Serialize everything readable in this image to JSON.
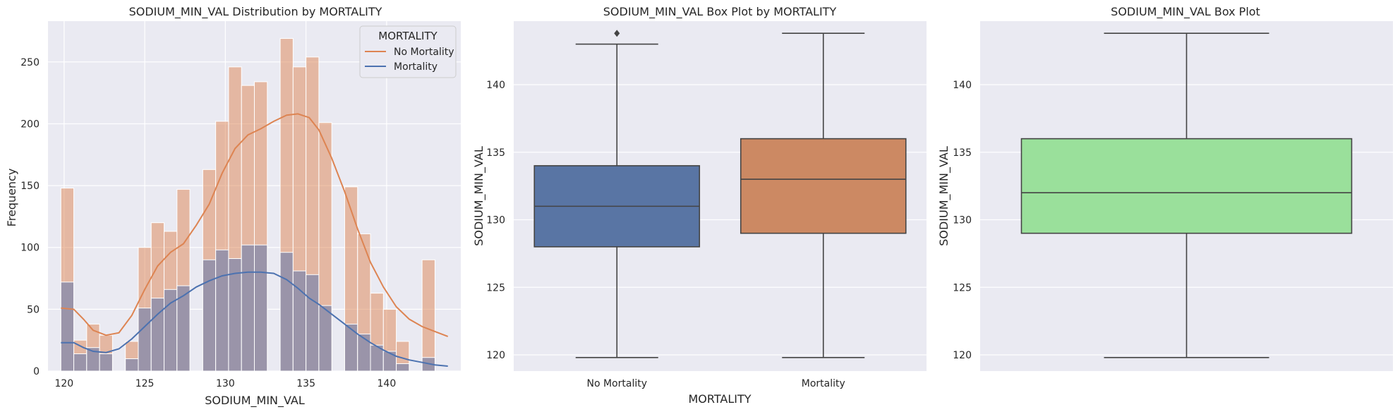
{
  "chart_data": [
    {
      "type": "histogram",
      "title": "SODIUM_MIN_VAL Distribution by MORTALITY",
      "xlabel": "SODIUM_MIN_VAL",
      "ylabel": "Frequency",
      "xlim": [
        119,
        144.6
      ],
      "ylim": [
        0,
        283
      ],
      "xticks": [
        120,
        125,
        130,
        135,
        140
      ],
      "yticks": [
        0,
        50,
        100,
        150,
        200,
        250
      ],
      "legend": {
        "title": "MORTALITY",
        "placement": "top-right",
        "entries": [
          "No Mortality",
          "Mortality"
        ]
      },
      "colors": {
        "No Mortality": "#dd8452",
        "Mortality": "#4c72b0",
        "overlap": "#9a94a9"
      },
      "bin_edges": [
        119.8,
        120.6,
        121.4,
        122.2,
        123.0,
        123.8,
        124.6,
        125.4,
        126.2,
        127.0,
        127.8,
        128.6,
        129.4,
        130.2,
        131.0,
        131.8,
        132.6,
        133.4,
        134.2,
        135.0,
        135.8,
        136.6,
        137.4,
        138.2,
        139.0,
        139.8,
        140.6,
        141.4,
        142.2,
        143.0,
        143.8
      ],
      "series": [
        {
          "name": "No Mortality",
          "values": [
            148,
            25,
            38,
            29,
            0,
            24,
            100,
            120,
            113,
            147,
            0,
            163,
            202,
            246,
            231,
            234,
            0,
            269,
            246,
            254,
            201,
            0,
            149,
            111,
            63,
            50,
            24,
            0,
            90,
            0
          ]
        },
        {
          "name": "Mortality",
          "values": [
            72,
            14,
            19,
            14,
            0,
            10,
            51,
            59,
            66,
            69,
            0,
            90,
            98,
            91,
            102,
            102,
            0,
            96,
            81,
            78,
            53,
            0,
            38,
            30,
            21,
            16,
            6,
            0,
            11,
            0
          ]
        }
      ],
      "kde": [
        {
          "name": "No Mortality",
          "x": [
            119.8,
            120.6,
            121.2,
            121.8,
            122.6,
            123.4,
            124.2,
            125.0,
            125.8,
            126.6,
            127.4,
            128.2,
            129.0,
            129.8,
            130.6,
            131.4,
            132.2,
            133.0,
            133.8,
            134.5,
            135.2,
            135.8,
            136.6,
            137.4,
            138.2,
            139.0,
            139.8,
            140.6,
            141.4,
            142.2,
            143.0,
            143.8
          ],
          "y": [
            51,
            50,
            42,
            33,
            29,
            31,
            45,
            66,
            85,
            96,
            103,
            118,
            135,
            160,
            180,
            191,
            196,
            202,
            207,
            208,
            205,
            195,
            172,
            145,
            115,
            88,
            68,
            52,
            42,
            36,
            32,
            28
          ]
        },
        {
          "name": "Mortality",
          "x": [
            119.8,
            120.6,
            121.2,
            121.8,
            122.6,
            123.4,
            124.2,
            125.0,
            125.8,
            126.6,
            127.4,
            128.2,
            129.0,
            129.8,
            130.6,
            131.4,
            132.2,
            133.0,
            133.8,
            134.5,
            135.2,
            135.8,
            136.6,
            137.4,
            138.2,
            139.0,
            139.8,
            140.6,
            141.4,
            142.2,
            143.0,
            143.8
          ],
          "y": [
            23,
            23,
            19,
            16,
            15,
            18,
            26,
            36,
            46,
            55,
            61,
            68,
            73,
            77,
            79,
            80,
            80,
            79,
            74,
            67,
            59,
            54,
            46,
            38,
            30,
            23,
            17,
            12,
            9,
            7,
            5,
            4
          ]
        }
      ]
    },
    {
      "type": "box",
      "title": "SODIUM_MIN_VAL Box Plot by MORTALITY",
      "xlabel": "MORTALITY",
      "ylabel": "SODIUM_MIN_VAL",
      "ylim": [
        118.8,
        144.7
      ],
      "yticks": [
        120,
        125,
        130,
        135,
        140
      ],
      "categories": [
        "No Mortality",
        "Mortality"
      ],
      "colors": [
        "#5975a4",
        "#cc8963"
      ],
      "boxes": [
        {
          "name": "No Mortality",
          "whisker_low": 119.8,
          "q1": 128,
          "median": 131,
          "q3": 134,
          "whisker_high": 143,
          "outliers": [
            143.8
          ]
        },
        {
          "name": "Mortality",
          "whisker_low": 119.8,
          "q1": 129,
          "median": 133,
          "q3": 136,
          "whisker_high": 143.8,
          "outliers": []
        }
      ]
    },
    {
      "type": "box",
      "title": "SODIUM_MIN_VAL Box Plot",
      "xlabel": "",
      "ylabel": "SODIUM_MIN_VAL",
      "ylim": [
        118.8,
        144.7
      ],
      "yticks": [
        120,
        125,
        130,
        135,
        140
      ],
      "colors": [
        "#9ae09b"
      ],
      "boxes": [
        {
          "whisker_low": 119.8,
          "q1": 129,
          "median": 132,
          "q3": 136,
          "whisker_high": 143.8,
          "outliers": []
        }
      ]
    }
  ]
}
